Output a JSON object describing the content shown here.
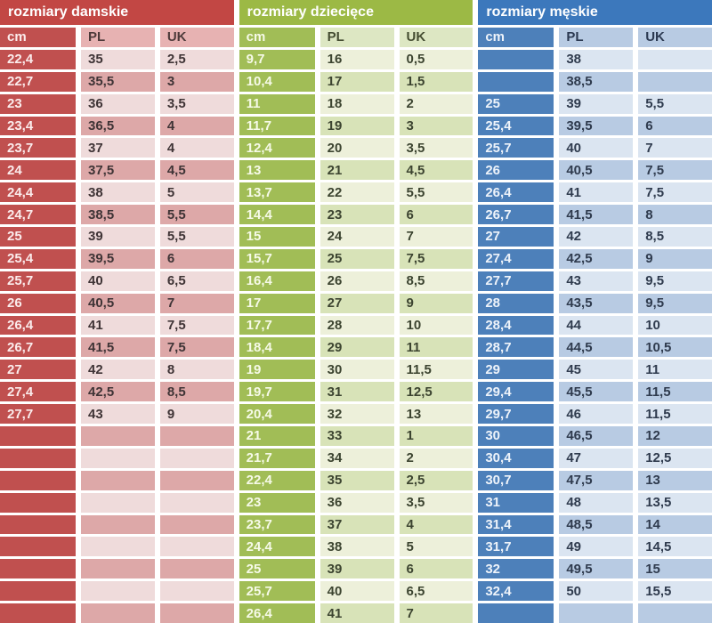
{
  "chart_data": [
    {
      "type": "table",
      "title": "rozmiary damskie",
      "columns": [
        "cm",
        "PL",
        "UK"
      ],
      "rows": [
        [
          "22,4",
          "35",
          "2,5"
        ],
        [
          "22,7",
          "35,5",
          "3"
        ],
        [
          "23",
          "36",
          "3,5"
        ],
        [
          "23,4",
          "36,5",
          "4"
        ],
        [
          "23,7",
          "37",
          "4"
        ],
        [
          "24",
          "37,5",
          "4,5"
        ],
        [
          "24,4",
          "38",
          "5"
        ],
        [
          "24,7",
          "38,5",
          "5,5"
        ],
        [
          "25",
          "39",
          "5,5"
        ],
        [
          "25,4",
          "39,5",
          "6"
        ],
        [
          "25,7",
          "40",
          "6,5"
        ],
        [
          "26",
          "40,5",
          "7"
        ],
        [
          "26,4",
          "41",
          "7,5"
        ],
        [
          "26,7",
          "41,5",
          "7,5"
        ],
        [
          "27",
          "42",
          "8"
        ],
        [
          "27,4",
          "42,5",
          "8,5"
        ],
        [
          "27,7",
          "43",
          "9"
        ],
        [
          "",
          "",
          ""
        ],
        [
          "",
          "",
          ""
        ],
        [
          "",
          "",
          ""
        ],
        [
          "",
          "",
          ""
        ],
        [
          "",
          "",
          ""
        ],
        [
          "",
          "",
          ""
        ],
        [
          "",
          "",
          ""
        ],
        [
          "",
          "",
          ""
        ],
        [
          "",
          "",
          ""
        ]
      ],
      "theme": {
        "title_bg": "#c24744",
        "title_text": "#ffffff",
        "cm_bg": "#c0504f",
        "cm_text": "#fbecec",
        "header_bg": "#e7b2b2",
        "header_text": "#4d3a3a",
        "row_light": "#efdbdb",
        "row_dark": "#dda8a8",
        "value_text": "#3f3436"
      }
    },
    {
      "type": "table",
      "title": "rozmiary dziecięce",
      "columns": [
        "cm",
        "PL",
        "UK"
      ],
      "rows": [
        [
          "9,7",
          "16",
          "0,5"
        ],
        [
          "10,4",
          "17",
          "1,5"
        ],
        [
          "11",
          "18",
          "2"
        ],
        [
          "11,7",
          "19",
          "3"
        ],
        [
          "12,4",
          "20",
          "3,5"
        ],
        [
          "13",
          "21",
          "4,5"
        ],
        [
          "13,7",
          "22",
          "5,5"
        ],
        [
          "14,4",
          "23",
          "6"
        ],
        [
          "15",
          "24",
          "7"
        ],
        [
          "15,7",
          "25",
          "7,5"
        ],
        [
          "16,4",
          "26",
          "8,5"
        ],
        [
          "17",
          "27",
          "9"
        ],
        [
          "17,7",
          "28",
          "10"
        ],
        [
          "18,4",
          "29",
          "11"
        ],
        [
          "19",
          "30",
          "11,5"
        ],
        [
          "19,7",
          "31",
          "12,5"
        ],
        [
          "20,4",
          "32",
          "13"
        ],
        [
          "21",
          "33",
          "1"
        ],
        [
          "21,7",
          "34",
          "2"
        ],
        [
          "22,4",
          "35",
          "2,5"
        ],
        [
          "23",
          "36",
          "3,5"
        ],
        [
          "23,7",
          "37",
          "4"
        ],
        [
          "24,4",
          "38",
          "5"
        ],
        [
          "25",
          "39",
          "6"
        ],
        [
          "25,7",
          "40",
          "6,5"
        ],
        [
          "26,4",
          "41",
          "7"
        ]
      ],
      "theme": {
        "title_bg": "#9cb945",
        "title_text": "#ffffff",
        "cm_bg": "#a1bd56",
        "cm_text": "#f6fae8",
        "header_bg": "#dde7c3",
        "header_text": "#454d32",
        "row_light": "#edf0da",
        "row_dark": "#d8e3b8",
        "value_text": "#3c4430"
      }
    },
    {
      "type": "table",
      "title": "rozmiary męskie",
      "columns": [
        "cm",
        "PL",
        "UK"
      ],
      "rows": [
        [
          "",
          "38",
          ""
        ],
        [
          "",
          "38,5",
          ""
        ],
        [
          "25",
          "39",
          "5,5"
        ],
        [
          "25,4",
          "39,5",
          "6"
        ],
        [
          "25,7",
          "40",
          "7"
        ],
        [
          "26",
          "40,5",
          "7,5"
        ],
        [
          "26,4",
          "41",
          "7,5"
        ],
        [
          "26,7",
          "41,5",
          "8"
        ],
        [
          "27",
          "42",
          "8,5"
        ],
        [
          "27,4",
          "42,5",
          "9"
        ],
        [
          "27,7",
          "43",
          "9,5"
        ],
        [
          "28",
          "43,5",
          "9,5"
        ],
        [
          "28,4",
          "44",
          "10"
        ],
        [
          "28,7",
          "44,5",
          "10,5"
        ],
        [
          "29",
          "45",
          "11"
        ],
        [
          "29,4",
          "45,5",
          "11,5"
        ],
        [
          "29,7",
          "46",
          "11,5"
        ],
        [
          "30",
          "46,5",
          "12"
        ],
        [
          "30,4",
          "47",
          "12,5"
        ],
        [
          "30,7",
          "47,5",
          "13"
        ],
        [
          "31",
          "48",
          "13,5"
        ],
        [
          "31,4",
          "48,5",
          "14"
        ],
        [
          "31,7",
          "49",
          "14,5"
        ],
        [
          "32",
          "49,5",
          "15"
        ],
        [
          "32,4",
          "50",
          "15,5"
        ],
        [
          "",
          "",
          ""
        ]
      ],
      "theme": {
        "title_bg": "#3c78bc",
        "title_text": "#ffffff",
        "cm_bg": "#4d80ba",
        "cm_text": "#eef3fa",
        "header_bg": "#b8cbe3",
        "header_text": "#2c3a52",
        "row_light": "#dbe5f1",
        "row_dark": "#b8cbe3",
        "value_text": "#2f3b4e"
      }
    }
  ]
}
